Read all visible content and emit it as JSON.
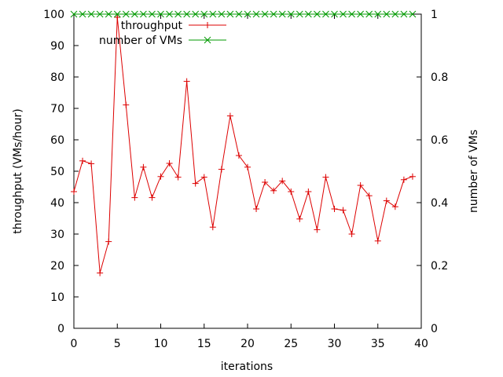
{
  "chart_data": {
    "type": "line",
    "title": "",
    "xlabel": "iterations",
    "ylabel": "throughput (VMs/hour)",
    "y2label": "number of VMs",
    "xlim": [
      0,
      40
    ],
    "ylim": [
      0,
      100
    ],
    "y2lim": [
      0,
      1
    ],
    "xticks": [
      "0",
      "5",
      "10",
      "15",
      "20",
      "25",
      "30",
      "35",
      "40"
    ],
    "yticks": [
      "0",
      "10",
      "20",
      "30",
      "40",
      "50",
      "60",
      "70",
      "80",
      "90",
      "100"
    ],
    "y2ticks": [
      "0",
      "0.2",
      "0.4",
      "0.6",
      "0.8",
      "1"
    ],
    "grid": false,
    "legend_position": "top-center",
    "x": [
      0,
      1,
      2,
      3,
      4,
      5,
      6,
      7,
      8,
      9,
      10,
      11,
      12,
      13,
      14,
      15,
      16,
      17,
      18,
      19,
      20,
      21,
      22,
      23,
      24,
      25,
      26,
      27,
      28,
      29,
      30,
      31,
      32,
      33,
      34,
      35,
      36,
      37,
      38,
      39
    ],
    "series": [
      {
        "name": "throughput",
        "axis": "left",
        "marker": "+",
        "color": "#dd0000",
        "values": [
          43.5,
          53.3,
          52.4,
          17.6,
          27.6,
          99.0,
          71.1,
          41.6,
          51.3,
          41.6,
          48.3,
          52.5,
          48.1,
          78.6,
          46.1,
          48.1,
          32.2,
          50.6,
          67.6,
          55.0,
          51.3,
          38.0,
          46.5,
          43.8,
          46.9,
          43.5,
          34.8,
          43.5,
          31.4,
          48.1,
          38.0,
          37.6,
          30.0,
          45.5,
          42.2,
          27.8,
          40.6,
          38.7,
          47.3,
          48.3
        ]
      },
      {
        "name": "number of VMs",
        "axis": "right",
        "marker": "x",
        "color": "#009900",
        "values": [
          1,
          1,
          1,
          1,
          1,
          1,
          1,
          1,
          1,
          1,
          1,
          1,
          1,
          1,
          1,
          1,
          1,
          1,
          1,
          1,
          1,
          1,
          1,
          1,
          1,
          1,
          1,
          1,
          1,
          1,
          1,
          1,
          1,
          1,
          1,
          1,
          1,
          1,
          1,
          1
        ]
      }
    ]
  }
}
